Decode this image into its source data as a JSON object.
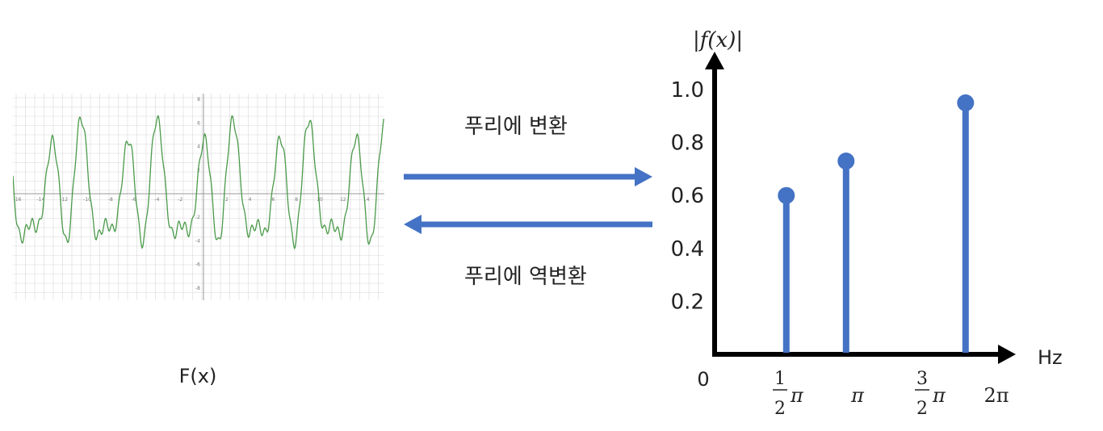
{
  "signal_panel": {
    "caption": "F(x)",
    "curve_color": "#4a9a4a",
    "grid_color": "#d8d8d8",
    "x_ticks": [
      "-16",
      "-14",
      "-12",
      "-10",
      "-8",
      "-6",
      "-4",
      "-2",
      "2",
      "4",
      "6",
      "8",
      "10",
      "12",
      "14"
    ],
    "y_ticks": [
      "8",
      "6",
      "4",
      "2",
      "-2",
      "-4",
      "-6",
      "-8"
    ]
  },
  "arrows": {
    "forward_label": "푸리에 변환",
    "inverse_label": "푸리에 역변환",
    "color": "#4472c4"
  },
  "spectrum": {
    "ylabel": "|f(x)|",
    "xlabel": "Hz",
    "origin_label": "0",
    "axis_color": "#000000",
    "stem_color": "#4472c4"
  },
  "chart_data": {
    "type": "stem",
    "xlabel": "Hz",
    "ylabel": "|f(x)|",
    "x_tick_labels": [
      "1/2 π",
      "π",
      "3/2 π",
      "2π"
    ],
    "y_tick_labels": [
      "1.0",
      "0.8",
      "0.6",
      "0.4",
      "0.2"
    ],
    "ylim": [
      0,
      1.0
    ],
    "points": [
      {
        "x": 0.6,
        "y": 0.6
      },
      {
        "x": 1.1,
        "y": 0.73
      },
      {
        "x": 2.1,
        "y": 0.95
      }
    ]
  }
}
